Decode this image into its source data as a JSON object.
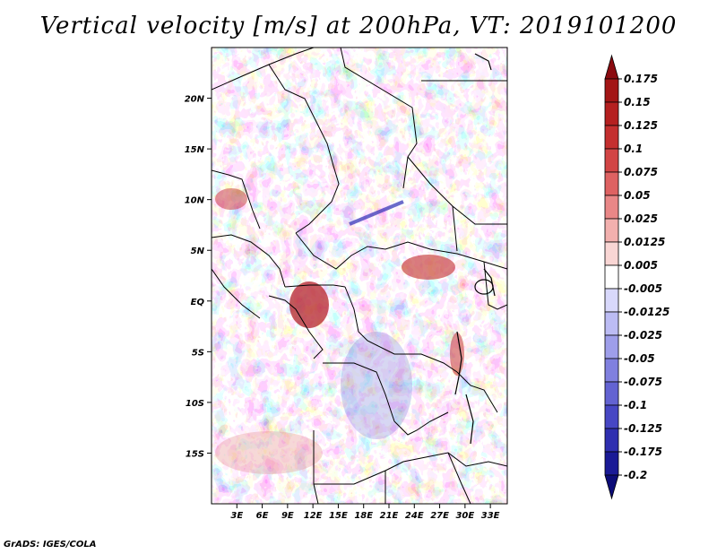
{
  "title": "Vertical velocity [m/s] at 200hPa, VT: 2019101200",
  "credit": "GrADS: IGES/COLA",
  "map": {
    "lon_range": [
      0,
      35
    ],
    "lat_range": [
      -20,
      25
    ],
    "lat_ticks": [
      {
        "label": "20N",
        "lat": 20
      },
      {
        "label": "15N",
        "lat": 15
      },
      {
        "label": "10N",
        "lat": 10
      },
      {
        "label": "5N",
        "lat": 5
      },
      {
        "label": "EQ",
        "lat": 0
      },
      {
        "label": "5S",
        "lat": -5
      },
      {
        "label": "10S",
        "lat": -10
      },
      {
        "label": "15S",
        "lat": -15
      }
    ],
    "lon_ticks": [
      {
        "label": "3E",
        "lon": 3
      },
      {
        "label": "6E",
        "lon": 6
      },
      {
        "label": "9E",
        "lon": 9
      },
      {
        "label": "12E",
        "lon": 12
      },
      {
        "label": "15E",
        "lon": 15
      },
      {
        "label": "18E",
        "lon": 18
      },
      {
        "label": "21E",
        "lon": 21
      },
      {
        "label": "24E",
        "lon": 24
      },
      {
        "label": "27E",
        "lon": 27
      },
      {
        "label": "30E",
        "lon": 30
      },
      {
        "label": "33E",
        "lon": 33
      }
    ]
  },
  "colorbar": {
    "levels": [
      "0.175",
      "0.15",
      "0.125",
      "0.1",
      "0.075",
      "0.05",
      "0.025",
      "0.0125",
      "0.005",
      "-0.005",
      "-0.0125",
      "-0.025",
      "-0.05",
      "-0.075",
      "-0.1",
      "-0.125",
      "-0.175",
      "-0.2"
    ],
    "colors": [
      "#8b0b10",
      "#a31616",
      "#b52020",
      "#c42f2f",
      "#d24545",
      "#de6262",
      "#e98787",
      "#f2b0ae",
      "#f9d6d4",
      "#ffffff",
      "#d8d8fb",
      "#bcbcf4",
      "#9e9eea",
      "#8080df",
      "#6363d2",
      "#4747c4",
      "#2f2fb0",
      "#1a1a96",
      "#0c0c78"
    ]
  }
}
